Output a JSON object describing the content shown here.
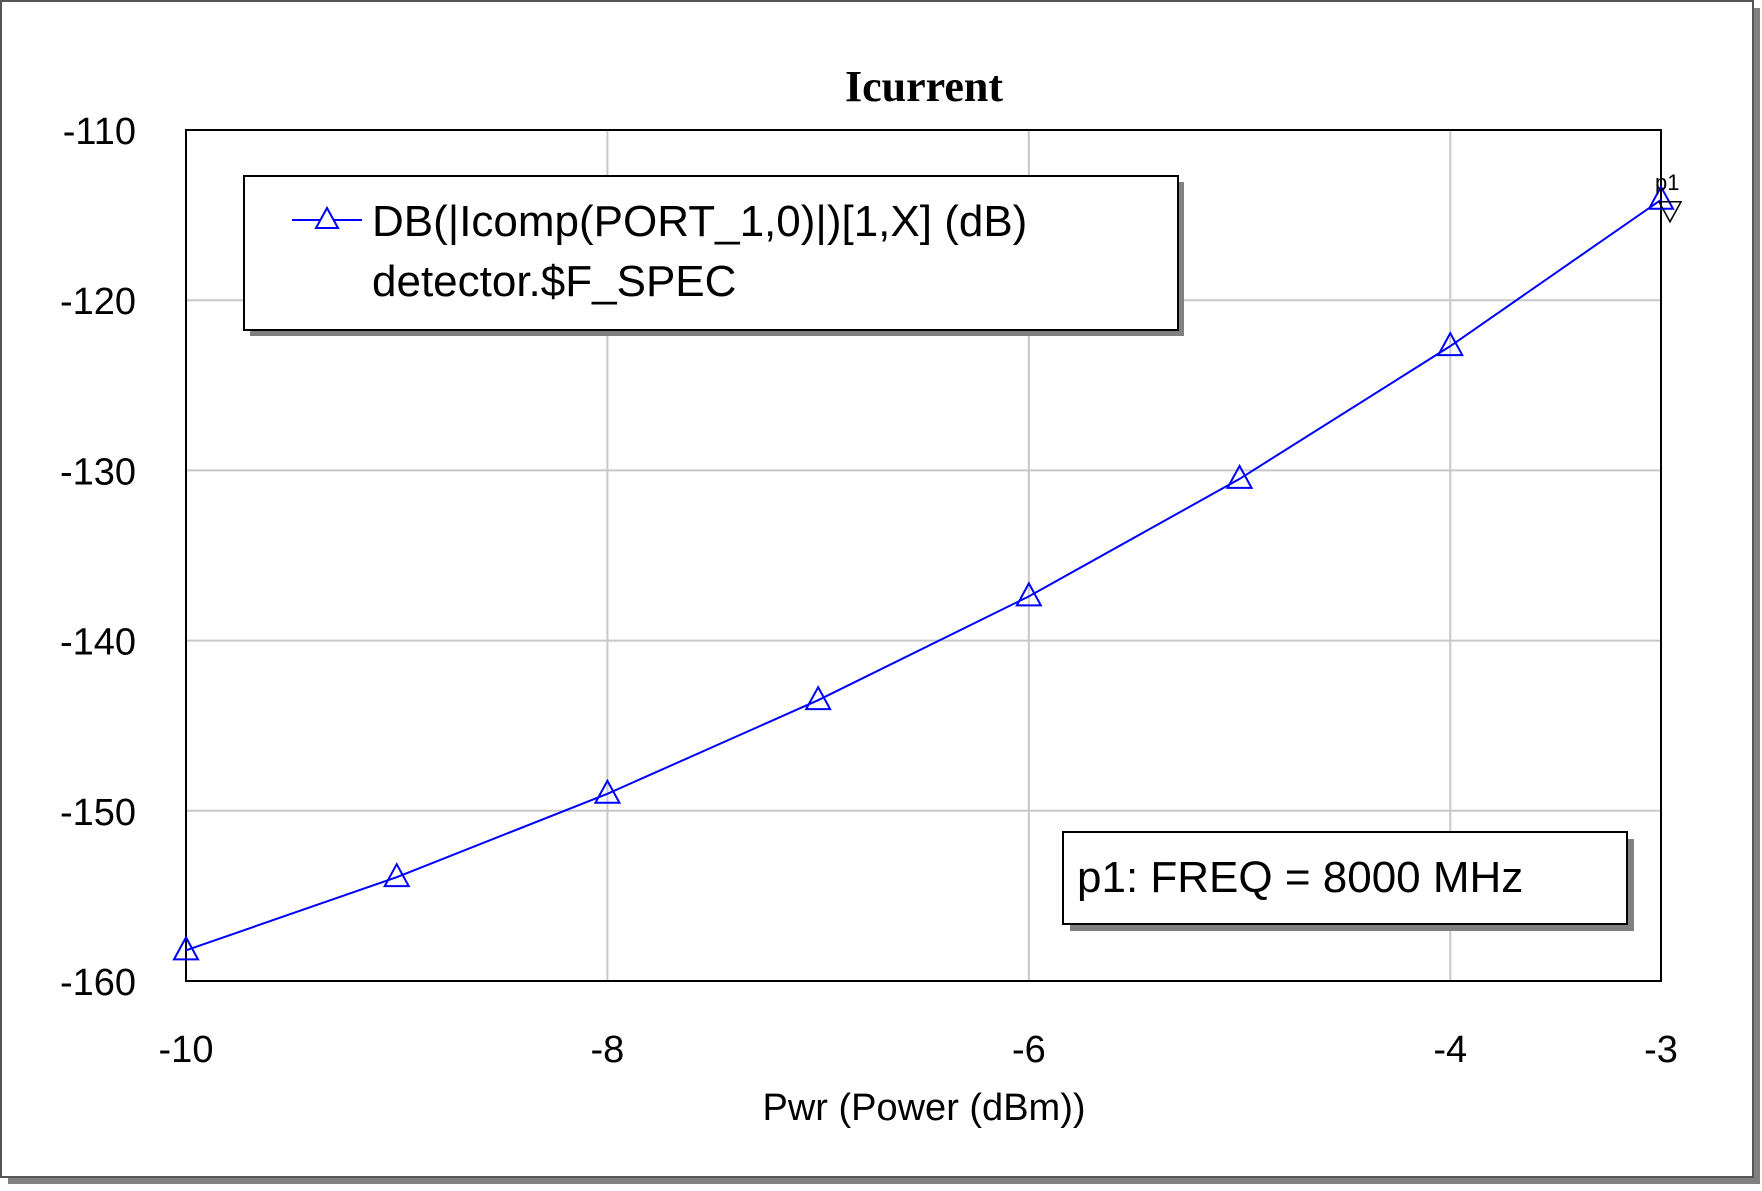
{
  "chart_data": {
    "type": "line",
    "title": "Icurrent",
    "xlabel": "Pwr (Power (dBm))",
    "ylabel": "",
    "xlim": [
      -10,
      -3
    ],
    "ylim": [
      -160,
      -110
    ],
    "x_ticks": [
      "-10",
      "-8",
      "-6",
      "-4",
      "-3"
    ],
    "x_tick_values": [
      -10,
      -8,
      -6,
      -4,
      -3
    ],
    "x_grid_values": [
      -10,
      -8,
      -6,
      -4,
      -3
    ],
    "y_ticks": [
      "-110",
      "-120",
      "-130",
      "-140",
      "-150",
      "-160"
    ],
    "y_tick_values": [
      -110,
      -120,
      -130,
      -140,
      -150,
      -160
    ],
    "grid": true,
    "legend_position": "top-left",
    "series": [
      {
        "name": "DB(|Icomp(PORT_1,0)|)[1,X] (dB)",
        "name_line2": "detector.$F_SPEC",
        "color": "#0000ff",
        "marker": "triangle",
        "x": [
          -10,
          -9,
          -8,
          -7,
          -6,
          -5,
          -4,
          -3
        ],
        "y": [
          -158.2,
          -153.9,
          -149.0,
          -143.5,
          -137.4,
          -130.5,
          -122.7,
          -114.1
        ]
      }
    ],
    "annotations": [
      {
        "label": "p1",
        "x": -3,
        "y": -114.1,
        "text": "p1: FREQ = 8000 MHz"
      }
    ]
  }
}
